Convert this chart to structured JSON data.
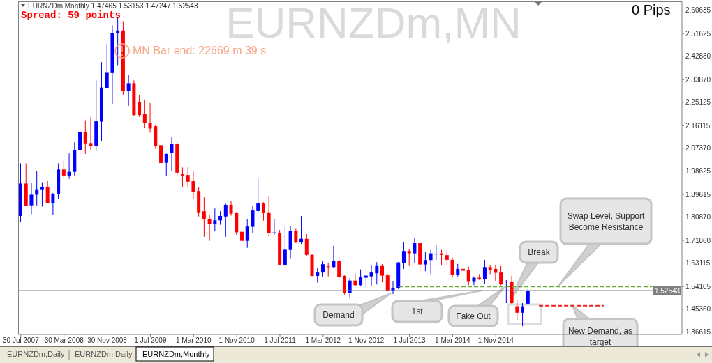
{
  "chart_data": {
    "type": "candlestick",
    "title": "EURNZDm,MN",
    "subtitle": "EURNZDm,Monthly 1.47465 1.53153 1.47247 1.52543",
    "categories": [
      "30 Jul 2007",
      null,
      null,
      null,
      null,
      null,
      null,
      null,
      "30 Mar 2008",
      null,
      null,
      null,
      null,
      null,
      null,
      null,
      "30 Nov 2008",
      null,
      null,
      null,
      null,
      null,
      null,
      null,
      "1 Jul 2009",
      null,
      null,
      null,
      null,
      null,
      null,
      null,
      "1 Mar 2010",
      null,
      null,
      null,
      null,
      null,
      null,
      null,
      "1 Nov 2010",
      null,
      null,
      null,
      null,
      null,
      null,
      null,
      "1 Jul 2011",
      null,
      null,
      null,
      null,
      null,
      null,
      null,
      "1 Mar 2012",
      null,
      null,
      null,
      null,
      null,
      null,
      null,
      "1 Nov 2012",
      null,
      null,
      null,
      null,
      null,
      null,
      null,
      "1 Jul 2013",
      null,
      null,
      null,
      null,
      null,
      null,
      null,
      "1 Mar 2014",
      null,
      null,
      null,
      null,
      null,
      null,
      null,
      "1 Nov 2014",
      null,
      null,
      null,
      null,
      null,
      null,
      null,
      null,
      null,
      null,
      null,
      null,
      null,
      null,
      null,
      null,
      null,
      null,
      null,
      null,
      null,
      null,
      null,
      null,
      null,
      null,
      null,
      null,
      null,
      null,
      null,
      null,
      null,
      null
    ],
    "ohlc": [
      [
        1.813,
        2.016,
        1.79,
        1.938
      ],
      [
        1.938,
        2.016,
        1.851,
        1.853
      ],
      [
        1.854,
        1.941,
        1.82,
        1.895
      ],
      [
        1.895,
        1.987,
        1.854,
        1.916
      ],
      [
        1.916,
        1.943,
        1.849,
        1.925
      ],
      [
        1.925,
        1.947,
        1.862,
        1.862
      ],
      [
        1.862,
        1.902,
        1.816,
        1.898
      ],
      [
        1.898,
        2.016,
        1.878,
        1.992
      ],
      [
        1.992,
        2.027,
        1.958,
        1.969
      ],
      [
        1.969,
        2.054,
        1.956,
        1.983
      ],
      [
        1.983,
        2.097,
        1.969,
        2.067
      ],
      [
        2.066,
        2.145,
        2.044,
        2.137
      ],
      [
        2.137,
        2.182,
        2.052,
        2.093
      ],
      [
        2.094,
        2.193,
        2.066,
        2.082
      ],
      [
        2.082,
        2.336,
        2.063,
        2.178
      ],
      [
        2.177,
        2.406,
        2.103,
        2.308
      ],
      [
        2.307,
        2.477,
        2.307,
        2.365
      ],
      [
        2.364,
        2.548,
        2.246,
        2.518
      ],
      [
        2.518,
        2.578,
        2.392,
        2.528
      ],
      [
        2.528,
        2.564,
        2.281,
        2.294
      ],
      [
        2.294,
        2.358,
        2.238,
        2.325
      ],
      [
        2.325,
        2.336,
        2.197,
        2.202
      ],
      [
        2.253,
        2.278,
        2.195,
        2.202
      ],
      [
        2.205,
        2.262,
        2.152,
        2.171
      ],
      [
        2.172,
        2.248,
        2.134,
        2.15
      ],
      [
        2.159,
        2.162,
        2.072,
        2.084
      ],
      [
        2.086,
        2.121,
        2.014,
        2.017
      ],
      [
        2.018,
        2.054,
        1.966,
        2.052
      ],
      [
        2.055,
        2.119,
        1.987,
        2.092
      ],
      [
        2.092,
        2.098,
        1.966,
        1.98
      ],
      [
        1.974,
        2.0,
        1.926,
        1.969
      ],
      [
        1.971,
        2.003,
        1.924,
        1.945
      ],
      [
        1.947,
        1.984,
        1.878,
        1.907
      ],
      [
        1.909,
        1.924,
        1.811,
        1.827
      ],
      [
        1.831,
        1.885,
        1.733,
        1.8
      ],
      [
        1.802,
        1.818,
        1.717,
        1.781
      ],
      [
        1.781,
        1.842,
        1.754,
        1.796
      ],
      [
        1.796,
        1.831,
        1.779,
        1.813
      ],
      [
        1.811,
        1.86,
        1.733,
        1.856
      ],
      [
        1.856,
        1.87,
        1.814,
        1.822
      ],
      [
        1.824,
        1.828,
        1.739,
        1.75
      ],
      [
        1.752,
        1.805,
        1.714,
        1.717
      ],
      [
        1.717,
        1.801,
        1.69,
        1.772
      ],
      [
        1.771,
        1.851,
        1.746,
        1.834
      ],
      [
        1.832,
        1.956,
        1.829,
        1.861
      ],
      [
        1.861,
        1.866,
        1.795,
        1.824
      ],
      [
        1.827,
        1.888,
        1.734,
        1.746
      ],
      [
        1.747,
        1.8,
        1.738,
        1.748
      ],
      [
        1.748,
        1.759,
        1.623,
        1.625
      ],
      [
        1.625,
        1.775,
        1.618,
        1.683
      ],
      [
        1.682,
        1.775,
        1.647,
        1.756
      ],
      [
        1.756,
        1.766,
        1.708,
        1.711
      ],
      [
        1.711,
        1.813,
        1.705,
        1.725
      ],
      [
        1.725,
        1.743,
        1.659,
        1.663
      ],
      [
        1.663,
        1.665,
        1.58,
        1.582
      ],
      [
        1.582,
        1.614,
        1.556,
        1.595
      ],
      [
        1.595,
        1.638,
        1.58,
        1.627
      ],
      [
        1.619,
        1.631,
        1.58,
        1.616
      ],
      [
        1.616,
        1.698,
        1.611,
        1.641
      ],
      [
        1.641,
        1.655,
        1.567,
        1.578
      ],
      [
        1.582,
        1.584,
        1.51,
        1.515
      ],
      [
        1.515,
        1.574,
        1.495,
        1.564
      ],
      [
        1.564,
        1.591,
        1.544,
        1.546
      ],
      [
        1.546,
        1.607,
        1.544,
        1.577
      ],
      [
        1.575,
        1.587,
        1.538,
        1.583
      ],
      [
        1.58,
        1.623,
        1.542,
        1.595
      ],
      [
        1.592,
        1.635,
        1.549,
        1.62
      ],
      [
        1.62,
        1.627,
        1.557,
        1.583
      ],
      [
        1.584,
        1.589,
        1.523,
        1.525
      ],
      [
        1.525,
        1.561,
        1.512,
        1.535
      ],
      [
        1.535,
        1.635,
        1.531,
        1.634
      ],
      [
        1.631,
        1.711,
        1.609,
        1.678
      ],
      [
        1.678,
        1.685,
        1.62,
        1.669
      ],
      [
        1.669,
        1.728,
        1.631,
        1.708
      ],
      [
        1.708,
        1.708,
        1.604,
        1.626
      ],
      [
        1.626,
        1.674,
        1.6,
        1.643
      ],
      [
        1.643,
        1.683,
        1.589,
        1.669
      ],
      [
        1.664,
        1.701,
        1.643,
        1.666
      ],
      [
        1.669,
        1.682,
        1.622,
        1.663
      ],
      [
        1.662,
        1.68,
        1.625,
        1.644
      ],
      [
        1.644,
        1.652,
        1.575,
        1.586
      ],
      [
        1.586,
        1.628,
        1.58,
        1.609
      ],
      [
        1.609,
        1.618,
        1.571,
        1.602
      ],
      [
        1.604,
        1.618,
        1.546,
        1.559
      ],
      [
        1.559,
        1.58,
        1.546,
        1.575
      ],
      [
        1.575,
        1.589,
        1.566,
        1.571
      ],
      [
        1.571,
        1.644,
        1.551,
        1.616
      ],
      [
        1.616,
        1.625,
        1.589,
        1.605
      ],
      [
        1.609,
        1.625,
        1.562,
        1.594
      ],
      [
        1.595,
        1.62,
        1.546,
        1.549
      ],
      [
        1.549,
        1.566,
        1.477,
        1.551
      ],
      [
        1.558,
        1.582,
        1.474,
        1.477
      ],
      [
        1.465,
        1.49,
        1.412,
        1.44
      ],
      [
        1.44,
        1.477,
        1.388,
        1.465
      ],
      [
        1.47465,
        1.53153,
        1.47247,
        1.52543
      ],
      null,
      null,
      null,
      null,
      null,
      null,
      null,
      null,
      null,
      null,
      null,
      null,
      null,
      null,
      null,
      null,
      null,
      null,
      null,
      null,
      null,
      null,
      null,
      null,
      null,
      null,
      null,
      null
    ],
    "colors": [
      "#0000ff",
      "#ff0000",
      "#0000ff",
      "#0000ff",
      "#0000ff",
      "#ff0000",
      "#0000ff",
      "#0000ff",
      "#ff0000",
      "#0000ff",
      "#0000ff",
      "#0000ff",
      "#ff0000",
      "#ff0000",
      "#0000ff",
      "#0000ff",
      "#0000ff",
      "#0000ff",
      "#0000ff",
      "#ff0000",
      "#0000ff",
      "#ff0000",
      "#ff0000",
      "#ff0000",
      "#ff0000",
      "#ff0000",
      "#ff0000",
      "#0000ff",
      "#0000ff",
      "#ff0000",
      "#ff0000",
      "#ff0000",
      "#ff0000",
      "#ff0000",
      "#ff0000",
      "#ff0000",
      "#0000ff",
      "#0000ff",
      "#0000ff",
      "#ff0000",
      "#ff0000",
      "#ff0000",
      "#0000ff",
      "#0000ff",
      "#0000ff",
      "#ff0000",
      "#ff0000",
      "#0000ff",
      "#ff0000",
      "#0000ff",
      "#0000ff",
      "#ff0000",
      "#0000ff",
      "#ff0000",
      "#ff0000",
      "#0000ff",
      "#0000ff",
      "#ff0000",
      "#0000ff",
      "#ff0000",
      "#ff0000",
      "#0000ff",
      "#ff0000",
      "#0000ff",
      "#0000ff",
      "#0000ff",
      "#0000ff",
      "#ff0000",
      "#ff0000",
      "#0000ff",
      "#0000ff",
      "#0000ff",
      "#ff0000",
      "#0000ff",
      "#ff0000",
      "#0000ff",
      "#0000ff",
      "#0000ff",
      "#ff0000",
      "#ff0000",
      "#ff0000",
      "#0000ff",
      "#ff0000",
      "#ff0000",
      "#0000ff",
      "#ff0000",
      "#0000ff",
      "#ff0000",
      "#ff0000",
      "#ff0000",
      "#0000ff",
      "#ff0000",
      "#ff0000",
      "#0000ff",
      "#0000ff",
      null,
      null,
      null,
      null,
      null,
      null,
      null,
      null,
      null,
      null,
      null,
      null,
      null,
      null,
      null,
      null,
      null,
      null,
      null,
      null,
      null,
      null,
      null,
      null,
      null,
      null,
      null,
      null
    ],
    "series": [
      {
        "type": "line",
        "color": "#66aa33",
        "values": [
          null,
          null,
          null,
          null,
          null,
          null,
          null,
          null,
          null,
          null,
          null,
          null,
          null,
          null,
          null,
          null,
          null,
          null,
          null,
          null,
          null,
          null,
          null,
          null,
          null,
          null,
          null,
          null,
          null,
          null,
          null,
          null,
          null,
          null,
          null,
          null,
          null,
          null,
          null,
          null,
          null,
          null,
          null,
          null,
          null,
          null,
          null,
          null,
          null,
          null,
          null,
          null,
          null,
          null,
          null,
          null,
          null,
          null,
          null,
          null,
          null,
          null,
          null,
          null,
          null,
          null,
          null,
          null,
          null,
          null,
          1.541,
          1.541,
          1.541,
          1.541,
          1.541,
          1.541,
          1.541,
          1.541,
          1.541,
          1.541,
          1.541,
          1.541,
          1.541,
          1.541,
          1.541,
          1.541,
          1.541,
          1.541,
          1.541,
          1.541,
          1.541,
          1.541,
          1.541,
          1.541,
          1.541,
          1.541,
          1.541,
          1.541,
          1.541,
          1.541,
          1.541,
          1.541,
          1.541,
          1.541,
          1.541,
          1.541,
          1.541,
          1.541,
          1.541,
          1.541,
          1.541,
          1.541,
          1.541,
          1.541,
          1.541,
          1.541,
          1.541,
          1.541,
          null,
          null,
          null,
          null,
          null
        ]
      },
      {
        "type": "line",
        "color": "#ee2222",
        "values": [
          null,
          null,
          null,
          null,
          null,
          null,
          null,
          null,
          null,
          null,
          null,
          null,
          null,
          null,
          null,
          null,
          null,
          null,
          null,
          null,
          null,
          null,
          null,
          null,
          null,
          null,
          null,
          null,
          null,
          null,
          null,
          null,
          null,
          null,
          null,
          null,
          null,
          null,
          null,
          null,
          null,
          null,
          null,
          null,
          null,
          null,
          null,
          null,
          null,
          null,
          null,
          null,
          null,
          null,
          null,
          null,
          null,
          null,
          null,
          null,
          null,
          null,
          null,
          null,
          null,
          null,
          null,
          null,
          null,
          null,
          null,
          null,
          null,
          null,
          null,
          null,
          null,
          null,
          null,
          null,
          null,
          null,
          null,
          null,
          null,
          null,
          null,
          null,
          null,
          null,
          null,
          null,
          null,
          null,
          null,
          null,
          1.467,
          1.467,
          1.467,
          1.467,
          1.467,
          1.467,
          1.467,
          1.467,
          1.467,
          1.467,
          1.467,
          1.467,
          1.467,
          null,
          null,
          null,
          null,
          null,
          null,
          null,
          null,
          null,
          null,
          null,
          null,
          null,
          null
        ]
      }
    ],
    "line_style": "dashed",
    "marker": "none",
    "ylim": [
      1.3562,
      2.6403
    ],
    "yticks": [
      {
        "value": 1.36615,
        "label": "1.36615"
      },
      {
        "value": 1.4536,
        "label": "1.45360"
      },
      {
        "value": 1.54105,
        "label": "1.54105"
      },
      {
        "value": 1.63115,
        "label": "1.63115"
      },
      {
        "value": 1.7186,
        "label": "1.71860"
      },
      {
        "value": 1.8087,
        "label": "1.80870"
      },
      {
        "value": 1.89615,
        "label": "1.89615"
      },
      {
        "value": 1.98625,
        "label": "1.98625"
      },
      {
        "value": 2.0737,
        "label": "2.07370"
      },
      {
        "value": 2.16115,
        "label": "2.16115"
      },
      {
        "value": 2.25125,
        "label": "2.25125"
      },
      {
        "value": 2.3387,
        "label": "2.33870"
      },
      {
        "value": 2.4288,
        "label": "2.42880"
      },
      {
        "value": 2.51625,
        "label": "2.51625"
      },
      {
        "value": 2.60635,
        "label": "2.60635"
      }
    ],
    "ref_lines": [
      {
        "axis": "y",
        "value": 1.52543,
        "label": "1.52543",
        "color": "#808080"
      }
    ],
    "annotations": [
      "Spread: 59 points",
      "MN Bar end: 22669 m 39 s",
      "0 Pips",
      "Demand",
      "1st",
      "Fake Out",
      "Break",
      "Swap Level, Support Become Resistance",
      "New Demand, as target",
      "EURNZDm,Daily",
      "EURNZDm,Daily",
      "EURNZDm,Monthly"
    ]
  }
}
